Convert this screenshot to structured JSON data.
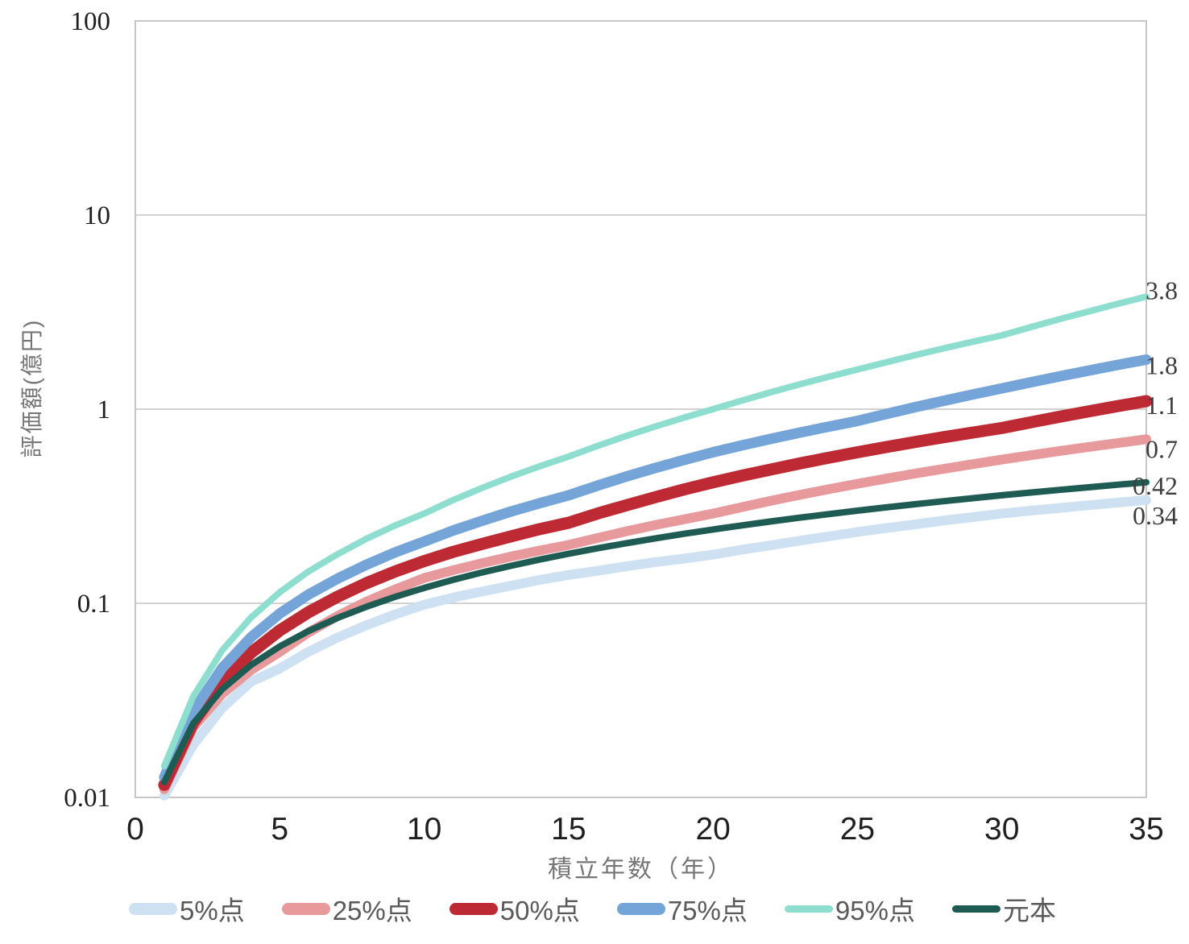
{
  "chart_data": {
    "type": "line",
    "title": "",
    "xlabel": "積立年数（年）",
    "ylabel": "評価額(億円)",
    "x_axis": {
      "label": "積立年数（年）",
      "ticks": [
        0,
        5,
        10,
        15,
        20,
        25,
        30,
        35
      ],
      "range": [
        0,
        35
      ]
    },
    "y_axis": {
      "label": "評価額(億円)",
      "scale": "log",
      "ticks": [
        "100",
        "10",
        "1",
        "0.1",
        "0.01"
      ],
      "tick_values": [
        100,
        10,
        1,
        0.1,
        0.01
      ],
      "range": [
        0.01,
        100
      ]
    },
    "grid": true,
    "legend_position": "bottom",
    "x_years": [
      1,
      2,
      3,
      4,
      5,
      6,
      7,
      8,
      9,
      10,
      11,
      12,
      13,
      14,
      15,
      16,
      17,
      18,
      19,
      20,
      21,
      22,
      23,
      24,
      25,
      26,
      27,
      28,
      29,
      30,
      31,
      32,
      33,
      34,
      35
    ],
    "series": [
      {
        "name": "5%点",
        "color": "#CEE1F2",
        "width": 12,
        "end_label": "0.34",
        "values": [
          0.0102,
          0.0186,
          0.0288,
          0.0394,
          0.0461,
          0.0563,
          0.0666,
          0.0771,
          0.0877,
          0.0984,
          0.107,
          0.115,
          0.123,
          0.132,
          0.14,
          0.147,
          0.155,
          0.163,
          0.17,
          0.178,
          0.189,
          0.199,
          0.21,
          0.221,
          0.233,
          0.244,
          0.255,
          0.267,
          0.278,
          0.29,
          0.3,
          0.31,
          0.32,
          0.33,
          0.34
        ]
      },
      {
        "name": "25%点",
        "color": "#E8999C",
        "width": 12,
        "end_label": "0.7",
        "values": [
          0.011,
          0.0229,
          0.0341,
          0.0452,
          0.0562,
          0.0708,
          0.086,
          0.102,
          0.118,
          0.135,
          0.148,
          0.161,
          0.174,
          0.187,
          0.2,
          0.217,
          0.235,
          0.253,
          0.271,
          0.29,
          0.313,
          0.337,
          0.362,
          0.387,
          0.413,
          0.439,
          0.466,
          0.493,
          0.521,
          0.55,
          0.579,
          0.609,
          0.639,
          0.669,
          0.7
        ]
      },
      {
        "name": "50%点",
        "color": "#BE2A33",
        "width": 15,
        "end_label": "1.1",
        "values": [
          0.0116,
          0.0242,
          0.0393,
          0.0555,
          0.0725,
          0.09,
          0.108,
          0.127,
          0.146,
          0.165,
          0.184,
          0.202,
          0.221,
          0.241,
          0.26,
          0.29,
          0.32,
          0.352,
          0.386,
          0.42,
          0.454,
          0.489,
          0.525,
          0.562,
          0.6,
          0.638,
          0.678,
          0.718,
          0.758,
          0.8,
          0.856,
          0.914,
          0.974,
          1.036,
          1.1
        ]
      },
      {
        "name": "75%点",
        "color": "#74A4D8",
        "width": 13,
        "end_label": "1.8",
        "values": [
          0.0127,
          0.0277,
          0.0463,
          0.0667,
          0.0886,
          0.111,
          0.134,
          0.158,
          0.183,
          0.208,
          0.237,
          0.266,
          0.297,
          0.328,
          0.36,
          0.404,
          0.45,
          0.498,
          0.548,
          0.6,
          0.651,
          0.703,
          0.757,
          0.813,
          0.87,
          0.945,
          1.024,
          1.106,
          1.191,
          1.28,
          1.376,
          1.476,
          1.58,
          1.69,
          1.8
        ]
      },
      {
        "name": "95%点",
        "color": "#8EDED0",
        "width": 8,
        "end_label": "3.8",
        "values": [
          0.0145,
          0.033,
          0.0571,
          0.0843,
          0.114,
          0.146,
          0.179,
          0.215,
          0.252,
          0.29,
          0.34,
          0.393,
          0.449,
          0.508,
          0.57,
          0.647,
          0.728,
          0.814,
          0.905,
          1.0,
          1.108,
          1.222,
          1.343,
          1.468,
          1.6,
          1.746,
          1.899,
          2.059,
          2.226,
          2.4,
          2.647,
          2.909,
          3.188,
          3.487,
          3.8
        ]
      },
      {
        "name": "元本",
        "color": "#1E5B53",
        "width": 8,
        "end_label": "0.42",
        "values": [
          0.012,
          0.024,
          0.036,
          0.048,
          0.06,
          0.072,
          0.084,
          0.096,
          0.108,
          0.12,
          0.132,
          0.144,
          0.156,
          0.168,
          0.18,
          0.192,
          0.204,
          0.216,
          0.228,
          0.24,
          0.252,
          0.264,
          0.276,
          0.288,
          0.3,
          0.312,
          0.324,
          0.336,
          0.348,
          0.36,
          0.372,
          0.384,
          0.396,
          0.408,
          0.42
        ]
      }
    ]
  }
}
